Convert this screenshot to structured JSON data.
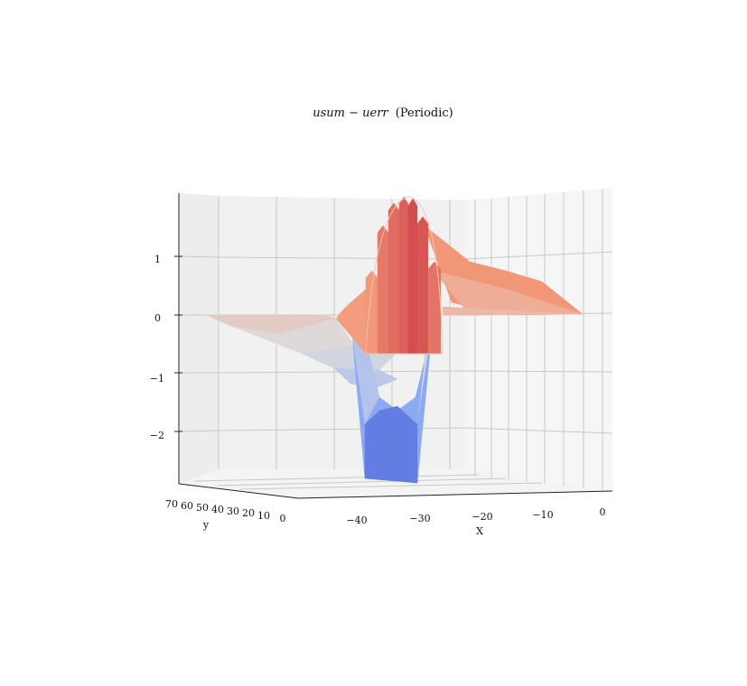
{
  "chart_data": {
    "type": "surface3d",
    "title": "usum − uerr (Periodic)",
    "title_math": "usum − uerr",
    "title_suffix": "(Periodic)",
    "xlabel": "X",
    "ylabel": "y",
    "zlabel": "",
    "xticks": [
      "−40",
      "−30",
      "−20",
      "−10",
      "0"
    ],
    "yticks": [
      "70",
      "60",
      "50",
      "40",
      "30",
      "20",
      "10",
      "0"
    ],
    "zticks": [
      "1",
      "0",
      "−1",
      "−2"
    ],
    "xlim": [
      -50,
      2
    ],
    "ylim": [
      0,
      70
    ],
    "zlim": [
      -2.8,
      2.0
    ],
    "colormap": "coolwarm",
    "grid": true,
    "surface": {
      "x": [
        -46,
        -44,
        -42,
        -40,
        -38,
        -36,
        -34,
        -32,
        -30,
        -28,
        -26,
        -24,
        -22,
        -20,
        -18,
        -16,
        -14,
        -12,
        -10,
        -8,
        -6,
        -4,
        -2
      ],
      "peak": {
        "x": -29,
        "z": 1.85
      },
      "trough": {
        "x": -31,
        "z": -2.85
      },
      "baseline_z": 0.0
    }
  },
  "colors": {
    "pane_left": "#ededed",
    "pane_back": "#f2f2f2",
    "pane_right": "#f7f7f7",
    "grid": "#c8c8c8"
  }
}
